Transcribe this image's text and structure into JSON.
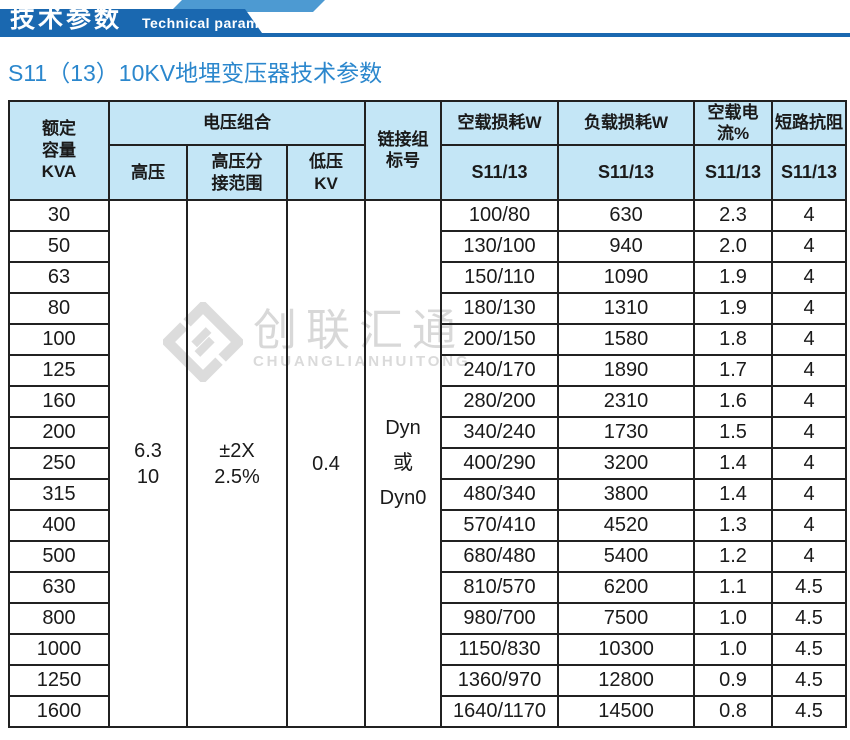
{
  "banner": {
    "title_cn": "技术参数",
    "title_en": "Technical parameter",
    "band_color": "#1a68b0",
    "accent_color": "#4d9ad2"
  },
  "page_title": "S11（13）10KV地埋变压器技术参数",
  "page_title_color": "#2b87cd",
  "watermark": {
    "name_cn": "创联汇通",
    "name_en": "CHUANGLIANHUITONG",
    "color": "#d8d8d8"
  },
  "table": {
    "header_bg_color": "#c4e6f6",
    "border_color": "#212121",
    "header": {
      "capacity": "额定\n容量\nKVA",
      "voltage_group": "电压组合",
      "hv": "高压",
      "hv_tap": "高压分\n接范围",
      "lv": "低压\nKV",
      "connection": "链接组\n标号",
      "no_load_loss": "空载损耗W",
      "load_loss": "负载损耗W",
      "no_load_current": "空载电流%",
      "impedance": "短路抗阻",
      "model": "S11/13"
    },
    "merged": {
      "hv": "6.3\n10",
      "tap": "±2X\n2.5%",
      "lv": "0.4",
      "connection": "Dyn\n或\nDyn0"
    },
    "rows": [
      {
        "kva": "30",
        "no_load_loss": "100/80",
        "load_loss": "630",
        "current": "2.3",
        "impedance": "4"
      },
      {
        "kva": "50",
        "no_load_loss": "130/100",
        "load_loss": "940",
        "current": "2.0",
        "impedance": "4"
      },
      {
        "kva": "63",
        "no_load_loss": "150/110",
        "load_loss": "1090",
        "current": "1.9",
        "impedance": "4"
      },
      {
        "kva": "80",
        "no_load_loss": "180/130",
        "load_loss": "1310",
        "current": "1.9",
        "impedance": "4"
      },
      {
        "kva": "100",
        "no_load_loss": "200/150",
        "load_loss": "1580",
        "current": "1.8",
        "impedance": "4"
      },
      {
        "kva": "125",
        "no_load_loss": "240/170",
        "load_loss": "1890",
        "current": "1.7",
        "impedance": "4"
      },
      {
        "kva": "160",
        "no_load_loss": "280/200",
        "load_loss": "2310",
        "current": "1.6",
        "impedance": "4"
      },
      {
        "kva": "200",
        "no_load_loss": "340/240",
        "load_loss": "1730",
        "current": "1.5",
        "impedance": "4"
      },
      {
        "kva": "250",
        "no_load_loss": "400/290",
        "load_loss": "3200",
        "current": "1.4",
        "impedance": "4"
      },
      {
        "kva": "315",
        "no_load_loss": "480/340",
        "load_loss": "3800",
        "current": "1.4",
        "impedance": "4"
      },
      {
        "kva": "400",
        "no_load_loss": "570/410",
        "load_loss": "4520",
        "current": "1.3",
        "impedance": "4"
      },
      {
        "kva": "500",
        "no_load_loss": "680/480",
        "load_loss": "5400",
        "current": "1.2",
        "impedance": "4"
      },
      {
        "kva": "630",
        "no_load_loss": "810/570",
        "load_loss": "6200",
        "current": "1.1",
        "impedance": "4.5"
      },
      {
        "kva": "800",
        "no_load_loss": "980/700",
        "load_loss": "7500",
        "current": "1.0",
        "impedance": "4.5"
      },
      {
        "kva": "1000",
        "no_load_loss": "1150/830",
        "load_loss": "10300",
        "current": "1.0",
        "impedance": "4.5"
      },
      {
        "kva": "1250",
        "no_load_loss": "1360/970",
        "load_loss": "12800",
        "current": "0.9",
        "impedance": "4.5"
      },
      {
        "kva": "1600",
        "no_load_loss": "1640/1170",
        "load_loss": "14500",
        "current": "0.8",
        "impedance": "4.5"
      }
    ]
  }
}
